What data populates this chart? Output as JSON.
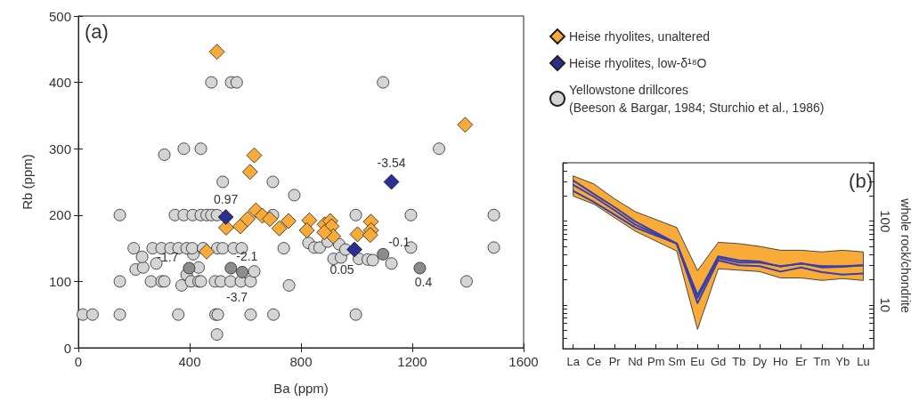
{
  "chart_data": [
    {
      "type": "scatter",
      "xlabel": "Ba (ppm)",
      "ylabel": "Rb (ppm)",
      "annotations": [
        "(a)",
        {
          "text": "0.97",
          "x": 530,
          "y": 197
        },
        {
          "text": "-3.54",
          "x": 1125,
          "y": 250
        },
        {
          "text": "0.05",
          "x": 992,
          "y": 148
        },
        {
          "text": "-1.7",
          "x": 398,
          "y": 120
        },
        {
          "text": "-2.1",
          "x": 548,
          "y": 120
        },
        {
          "text": "-3.7",
          "x": 589,
          "y": 114
        },
        {
          "text": "-0.1",
          "x": 1095,
          "y": 141
        },
        {
          "text": "0.4",
          "x": 1227,
          "y": 120
        }
      ],
      "xlim": [
        0,
        1600
      ],
      "xticks": [
        0,
        400,
        800,
        1200,
        1600
      ],
      "ylim": [
        0,
        500
      ],
      "yticks": [
        0,
        100,
        200,
        300,
        400,
        500
      ],
      "legend": "right",
      "series": [
        {
          "name": "Heise rhyolites, unaltered",
          "color": "#f9ab3a",
          "marker": "diamond",
          "x": [
            498,
            632,
            617,
            531,
            582,
            608,
            638,
            661,
            688,
            722,
            755,
            461,
            830,
            821,
            885,
            905,
            910,
            916,
            884,
            1003,
            1051,
            1052,
            1049,
            1390
          ],
          "values": [
            446,
            290,
            265,
            181,
            183,
            194,
            207,
            199,
            194,
            180,
            191,
            145,
            192,
            177,
            186,
            191,
            183,
            168,
            174,
            171,
            190,
            177,
            170,
            336
          ]
        },
        {
          "name": "Heise rhyolites, low-δ¹⁸O",
          "color": "#2b2f8f",
          "marker": "diamond",
          "x": [
            530,
            1125,
            992
          ],
          "values": [
            197,
            250,
            148
          ]
        },
        {
          "name": "Yellowstone drillcores\n(Beeson & Bargar, 1984; Sturchio et al., 1986)",
          "color": "#d3d4d6",
          "marker": "circle",
          "x": [
            16,
            51,
            149,
            359,
            493,
            501,
            619,
            701,
            997,
            498,
            149,
            261,
            299,
            309,
            371,
            389,
            405,
            432,
            440,
            491,
            512,
            547,
            584,
            619,
            757,
            206,
            233,
            280,
            432,
            632,
            413,
            229,
            199,
            267,
            299,
            331,
            360,
            389,
            409,
            448,
            499,
            519,
            558,
            587,
            738,
            149,
            347,
            379,
            411,
            440,
            461,
            478,
            498,
            699,
            776,
            519,
            699,
            309,
            379,
            440,
            478,
            549,
            569,
            1095,
            1296,
            997,
            1195,
            1493,
            1195,
            1493,
            1395,
            1125,
            827,
            848,
            867,
            896,
            937,
            917,
            944,
            960,
            1008,
            1040,
            1058
          ],
          "values": [
            50,
            50,
            50,
            50,
            50,
            50,
            50,
            50,
            50,
            20,
            100,
            100,
            100,
            100,
            94,
            110,
            100,
            100,
            100,
            100,
            100,
            100,
            100,
            100,
            94,
            118,
            121,
            127,
            121,
            115,
            141,
            137,
            150,
            150,
            150,
            150,
            150,
            150,
            150,
            150,
            150,
            150,
            150,
            150,
            150,
            200,
            200,
            200,
            200,
            200,
            200,
            200,
            200,
            200,
            230,
            250,
            250,
            291,
            300,
            300,
            400,
            400,
            400,
            400,
            300,
            200,
            200,
            200,
            151,
            151,
            100,
            127,
            158,
            151,
            151,
            160,
            156,
            134,
            136,
            148,
            134,
            133,
            132
          ]
        },
        {
          "color": "#8c8c8c",
          "marker": "circle",
          "x": [
            398,
            548,
            589,
            1095,
            1227
          ],
          "values": [
            120,
            120,
            114,
            141,
            120
          ]
        }
      ]
    },
    {
      "type": "line",
      "ylabel": "whole rock/chondrite",
      "annotations": [
        "(b)"
      ],
      "log": true,
      "categories": [
        "La",
        "Ce",
        "Pr",
        "Nd",
        "Pm",
        "Sm",
        "Eu",
        "Gd",
        "Tb",
        "Dy",
        "Ho",
        "Er",
        "Tm",
        "Yb",
        "Lu"
      ],
      "ylim": [
        3,
        500
      ],
      "yticks": [
        {
          "value": 3,
          "label": null
        },
        {
          "value": 4,
          "label": null
        },
        {
          "value": 5,
          "label": null
        },
        {
          "value": 6,
          "label": null
        },
        {
          "value": 7,
          "label": null
        },
        {
          "value": 8,
          "label": null
        },
        {
          "value": 9,
          "label": null
        },
        10,
        {
          "value": 20,
          "label": null
        },
        {
          "value": 30,
          "label": null
        },
        {
          "value": 40,
          "label": null
        },
        {
          "value": 50,
          "label": null
        },
        {
          "value": 60,
          "label": null
        },
        {
          "value": 70,
          "label": null
        },
        {
          "value": 80,
          "label": null
        },
        {
          "value": 90,
          "label": null
        },
        100,
        {
          "value": 200,
          "label": null
        },
        {
          "value": 300,
          "label": null
        },
        {
          "value": 400,
          "label": null
        },
        {
          "value": 500,
          "label": null
        }
      ],
      "series": [
        {
          "type": "area",
          "color": "#f9ab3a",
          "values": [
            null,
            null,
            null,
            null,
            null,
            null,
            null,
            null,
            null,
            null,
            null,
            null,
            null,
            null,
            null
          ],
          "lower": [
            200,
            160,
            110,
            76,
            null,
            44,
            5.1,
            27,
            26,
            25,
            21,
            21,
            19.6,
            20.6,
            19.6
          ],
          "upper": [
            348,
            279,
            185,
            130,
            null,
            84,
            25.7,
            56,
            54,
            50,
            45,
            45,
            43,
            45,
            43
          ]
        },
        {
          "color": "#3a3fa8",
          "values": [
            307,
            212,
            147,
            99,
            null,
            54,
            13.1,
            38,
            34,
            33,
            28.6,
            31.5,
            28,
            28.6,
            29.7
          ]
        },
        {
          "color": "#3a3fa8",
          "values": [
            272,
            196,
            135,
            91,
            null,
            54,
            12.1,
            36.5,
            32,
            32,
            29,
            31,
            29,
            29,
            29.7
          ]
        },
        {
          "color": "#3a3fa8",
          "values": [
            231,
            170,
            120,
            84,
            null,
            54,
            10.5,
            34,
            29.7,
            29,
            25,
            28,
            24.6,
            23,
            23.7
          ]
        }
      ]
    }
  ]
}
